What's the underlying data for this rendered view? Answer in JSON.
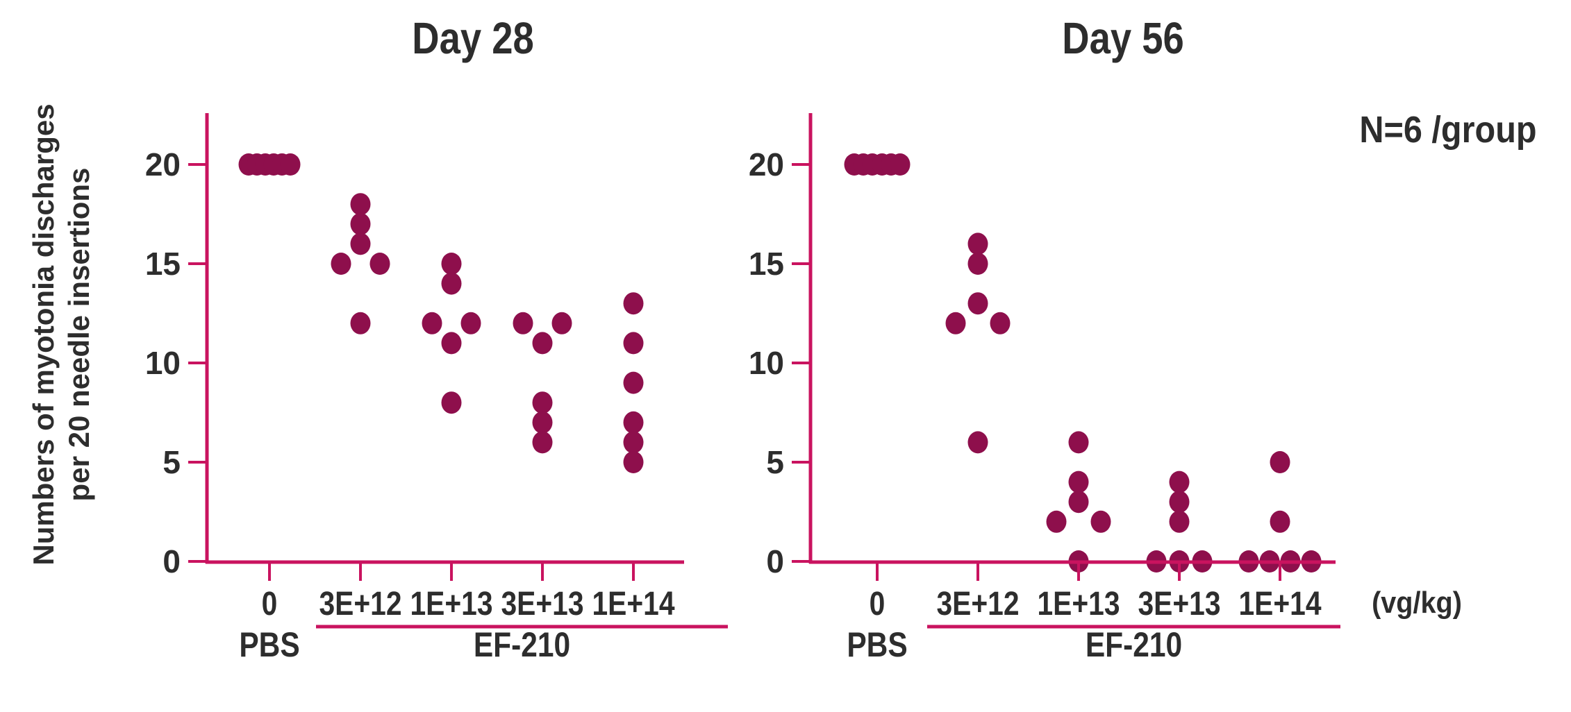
{
  "figure": {
    "y_axis_label_line1": "Numbers of myotonia discharges",
    "y_axis_label_line2": "per 20 needle insertions",
    "annotation": "N=6 /group",
    "unit_label": "(vg/kg)",
    "colors": {
      "dot": "#8E0F4C",
      "axis": "#C9135F",
      "text": "#2D2D2D",
      "background": "#FFFFFF"
    }
  },
  "chart_data": [
    {
      "type": "scatter",
      "title": "Day 28",
      "ylabel": "Numbers of myotonia discharges per 20 needle insertions",
      "ylim": [
        0,
        22.5
      ],
      "yticks": [
        20,
        15,
        10,
        5,
        0
      ],
      "grid": false,
      "x_categories": [
        "0",
        "3E+12",
        "1E+13",
        "3E+13",
        "1E+14"
      ],
      "x_group_labels": [
        "PBS",
        "EF-210"
      ],
      "series": [
        {
          "dose": "0",
          "group": "PBS",
          "values": [
            20,
            20,
            20,
            20,
            20,
            20
          ],
          "jitter": [
            -30,
            -18,
            -6,
            6,
            18,
            30
          ]
        },
        {
          "dose": "3E+12",
          "group": "EF-210",
          "values": [
            18,
            17,
            16,
            15,
            15,
            12
          ],
          "jitter": [
            0,
            0,
            0,
            -28,
            28,
            0
          ]
        },
        {
          "dose": "1E+13",
          "group": "EF-210",
          "values": [
            15,
            14,
            12,
            12,
            11,
            8
          ],
          "jitter": [
            0,
            0,
            -28,
            28,
            0,
            0
          ]
        },
        {
          "dose": "3E+13",
          "group": "EF-210",
          "values": [
            12,
            12,
            11,
            8,
            7,
            6
          ],
          "jitter": [
            -28,
            28,
            0,
            0,
            0,
            0
          ]
        },
        {
          "dose": "1E+14",
          "group": "EF-210",
          "values": [
            13,
            11,
            9,
            7,
            6,
            5
          ],
          "jitter": [
            0,
            0,
            0,
            0,
            0,
            0
          ]
        }
      ]
    },
    {
      "type": "scatter",
      "title": "Day 56",
      "ylabel": "Numbers of myotonia discharges per 20 needle insertions",
      "ylim": [
        0,
        22.5
      ],
      "yticks": [
        20,
        15,
        10,
        5,
        0
      ],
      "grid": false,
      "x_categories": [
        "0",
        "3E+12",
        "1E+13",
        "3E+13",
        "1E+14"
      ],
      "x_group_labels": [
        "PBS",
        "EF-210"
      ],
      "series": [
        {
          "dose": "0",
          "group": "PBS",
          "values": [
            20,
            20,
            20,
            20,
            20,
            20
          ],
          "jitter": [
            -33,
            -20,
            -7,
            7,
            20,
            33
          ]
        },
        {
          "dose": "3E+12",
          "group": "EF-210",
          "values": [
            16,
            15,
            13,
            12,
            12,
            6
          ],
          "jitter": [
            0,
            0,
            0,
            -32,
            32,
            0
          ]
        },
        {
          "dose": "1E+13",
          "group": "EF-210",
          "values": [
            6,
            4,
            3,
            2,
            2,
            0
          ],
          "jitter": [
            0,
            0,
            0,
            -32,
            32,
            0
          ]
        },
        {
          "dose": "3E+13",
          "group": "EF-210",
          "values": [
            4,
            3,
            2,
            0,
            0,
            0
          ],
          "jitter": [
            0,
            0,
            0,
            -33,
            0,
            33
          ]
        },
        {
          "dose": "1E+14",
          "group": "EF-210",
          "values": [
            5,
            2,
            0,
            0,
            0,
            0
          ],
          "jitter": [
            0,
            0,
            -45,
            -15,
            15,
            45
          ]
        }
      ]
    }
  ]
}
